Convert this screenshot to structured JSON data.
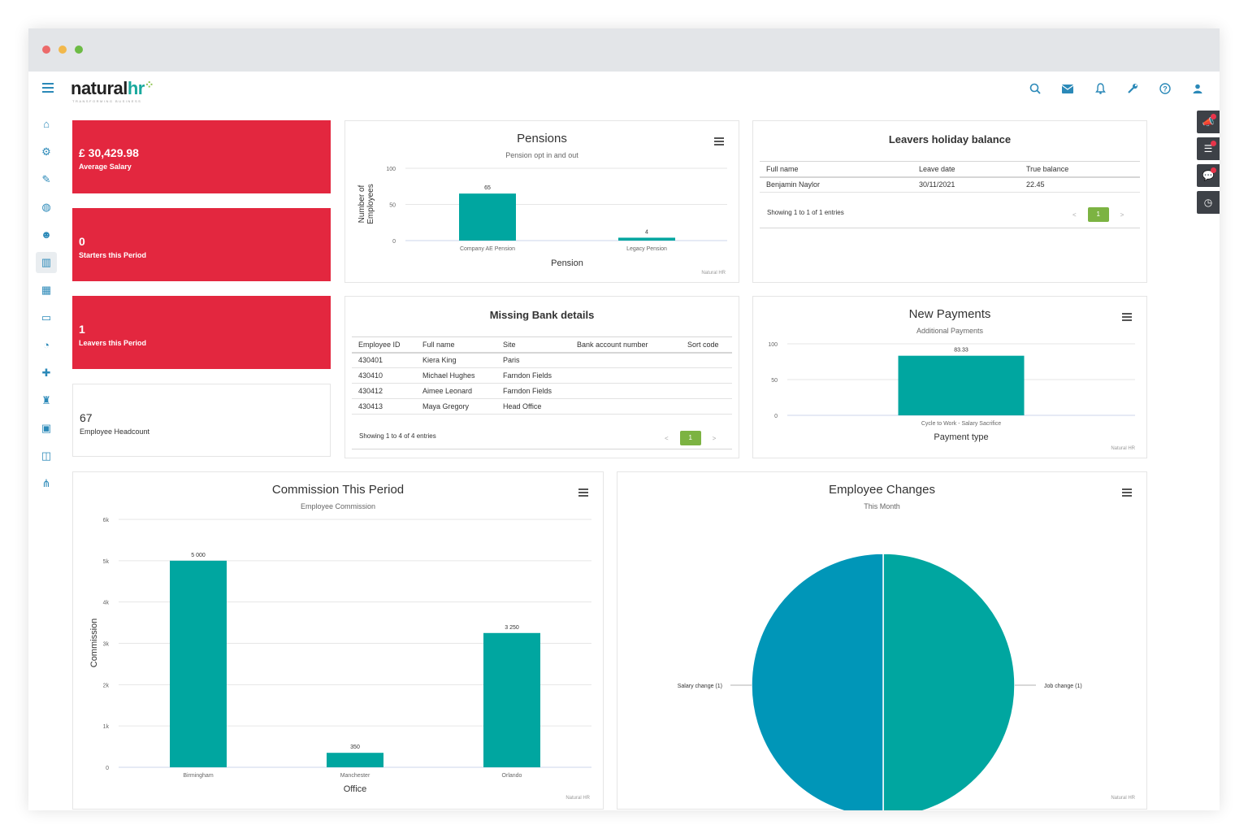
{
  "app": {
    "logo_main": "natural",
    "logo_accent": "hr",
    "logo_tagline": "TRANSFORMING BUSINESS",
    "window_dots": [
      "#ec6a6a",
      "#f2b84b",
      "#6dbb45"
    ]
  },
  "topbar": {
    "icons": [
      "search-icon",
      "mail-icon",
      "bell-icon",
      "wrench-icon",
      "help-icon",
      "user-icon"
    ]
  },
  "sidebar": {
    "icons": [
      "home-icon",
      "settings-icon",
      "user-edit-icon",
      "globe-icon",
      "users-icon",
      "chart-icon",
      "calendar-icon",
      "folder-icon",
      "dashboard-icon",
      "user-plus-icon",
      "training-icon",
      "money-icon",
      "devices-icon",
      "org-chart-icon"
    ],
    "active_index": 5
  },
  "right_buttons": [
    "megaphone-icon",
    "tasks-icon",
    "chat-icon",
    "clock-icon"
  ],
  "stats": [
    {
      "value": "£ 30,429.98",
      "label": "Average Salary"
    },
    {
      "value": "0",
      "label": "Starters this Period"
    },
    {
      "value": "1",
      "label": "Leavers this Period"
    },
    {
      "value": "67",
      "label": "Employee Headcount"
    }
  ],
  "pensions": {
    "title": "Pensions",
    "subtitle": "Pension opt in and out",
    "ylabel_line1": "Number of",
    "ylabel_line2": "Employees",
    "xlabel": "Pension",
    "credit": "Natural HR",
    "yticks": [
      "100",
      "50",
      "0"
    ]
  },
  "leavers": {
    "title": "Leavers holiday balance",
    "columns": [
      "Full name",
      "Leave date",
      "True balance"
    ],
    "rows": [
      [
        "Benjamin Naylor",
        "30/11/2021",
        "22.45"
      ]
    ],
    "showing": "Showing 1 to 1 of 1 entries",
    "page": "1",
    "prev": "<",
    "next": ">"
  },
  "missing_bank": {
    "title": "Missing Bank details",
    "columns": [
      "Employee ID",
      "Full name",
      "Site",
      "Bank account number",
      "Sort code"
    ],
    "rows": [
      [
        "430401",
        "Kiera King",
        "Paris",
        "",
        ""
      ],
      [
        "430410",
        "Michael Hughes",
        "Farndon Fields",
        "",
        ""
      ],
      [
        "430412",
        "Aimee Leonard",
        "Farndon Fields",
        "",
        ""
      ],
      [
        "430413",
        "Maya Gregory",
        "Head Office",
        "",
        ""
      ]
    ],
    "showing": "Showing 1 to 4 of 4 entries",
    "page": "1",
    "prev": "<",
    "next": ">"
  },
  "new_payments": {
    "title": "New Payments",
    "subtitle": "Additional Payments",
    "xlabel": "Payment type",
    "credit": "Natural HR",
    "yticks": [
      "100",
      "50",
      "0"
    ]
  },
  "commission": {
    "title": "Commission This Period",
    "subtitle": "Employee Commission",
    "ylabel": "Commission",
    "xlabel": "Office",
    "credit": "Natural HR",
    "yticks": [
      "6k",
      "5k",
      "4k",
      "3k",
      "2k",
      "1k",
      "0"
    ]
  },
  "employee_changes": {
    "title": "Employee Changes",
    "subtitle": "This Month",
    "credit": "Natural HR"
  },
  "chart_data": [
    {
      "type": "bar",
      "title": "Pensions",
      "subtitle": "Pension opt in and out",
      "categories": [
        "Company AE Pension",
        "Legacy Pension"
      ],
      "values": [
        65,
        4
      ],
      "data_labels": [
        "65",
        "4"
      ],
      "xlabel": "Pension",
      "ylabel": "Number of Employees",
      "ylim": [
        0,
        100
      ],
      "color": "#00a6a0"
    },
    {
      "type": "bar",
      "title": "New Payments",
      "subtitle": "Additional Payments",
      "categories": [
        "Cycle to Work - Salary Sacrifice"
      ],
      "values": [
        83.33
      ],
      "data_labels": [
        "83.33"
      ],
      "xlabel": "Payment type",
      "ylim": [
        0,
        100
      ],
      "color": "#00a6a0"
    },
    {
      "type": "bar",
      "title": "Commission This Period",
      "subtitle": "Employee Commission",
      "categories": [
        "Birmingham",
        "Manchester",
        "Orlando"
      ],
      "values": [
        5000,
        350,
        3250
      ],
      "data_labels": [
        "5 000",
        "350",
        "3 250"
      ],
      "xlabel": "Office",
      "ylabel": "Commission",
      "ylim": [
        0,
        6000
      ],
      "color": "#00a6a0"
    },
    {
      "type": "pie",
      "title": "Employee Changes",
      "subtitle": "This Month",
      "labels": [
        "Job change (1)",
        "Salary change (1)"
      ],
      "values": [
        1,
        1
      ],
      "colors": [
        "#00a6a0",
        "#0096b8"
      ]
    }
  ]
}
